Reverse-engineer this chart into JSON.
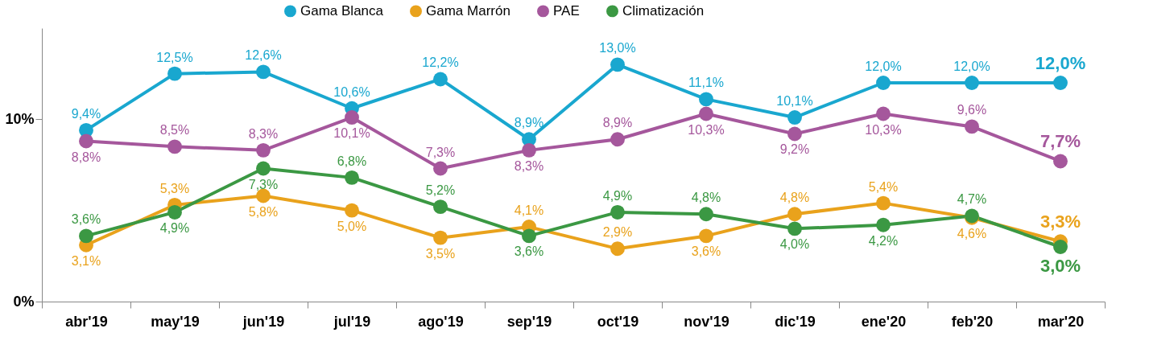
{
  "chart_data": {
    "type": "line",
    "categories": [
      "abr'19",
      "may'19",
      "jun'19",
      "jul'19",
      "ago'19",
      "sep'19",
      "oct'19",
      "nov'19",
      "dic'19",
      "ene'20",
      "feb'20",
      "mar'20"
    ],
    "series": [
      {
        "name": "Gama Blanca",
        "color": "#19a7cf",
        "values": [
          9.4,
          12.5,
          12.6,
          10.6,
          12.2,
          8.9,
          13.0,
          11.1,
          10.1,
          12.0,
          12.0,
          12.0
        ],
        "value_labels": [
          "9,4%",
          "12,5%",
          "12,6%",
          "10,6%",
          "12,2%",
          "8,9%",
          "13,0%",
          "11,1%",
          "10,1%",
          "12,0%",
          "12,0%",
          "12,0%"
        ]
      },
      {
        "name": "Gama Marrón",
        "color": "#e9a21c",
        "values": [
          3.1,
          5.3,
          5.8,
          5.0,
          3.5,
          4.1,
          2.9,
          3.6,
          4.8,
          5.4,
          4.6,
          3.3
        ],
        "value_labels": [
          "3,1%",
          "5,3%",
          "5,8%",
          "5,0%",
          "3,5%",
          "4,1%",
          "2,9%",
          "3,6%",
          "4,8%",
          "5,4%",
          "4,6%",
          "3,3%"
        ]
      },
      {
        "name": "PAE",
        "color": "#a5579c",
        "values": [
          8.8,
          8.5,
          8.3,
          10.1,
          7.3,
          8.3,
          8.9,
          10.3,
          9.2,
          10.3,
          9.6,
          7.7
        ],
        "value_labels": [
          "8,8%",
          "8,5%",
          "8,3%",
          "10,1%",
          "7,3%",
          "8,3%",
          "8,9%",
          "10,3%",
          "9,2%",
          "10,3%",
          "9,6%",
          "7,7%"
        ]
      },
      {
        "name": "Climatización",
        "color": "#3b9843",
        "values": [
          3.6,
          4.9,
          7.3,
          6.8,
          5.2,
          3.6,
          4.9,
          4.8,
          4.0,
          4.2,
          4.7,
          3.0
        ],
        "value_labels": [
          "3,6%",
          "4,9%",
          "7,3%",
          "6,8%",
          "5,2%",
          "3,6%",
          "4,9%",
          "4,8%",
          "4,0%",
          "4,2%",
          "4,7%",
          "3,0%"
        ]
      }
    ],
    "ylim": [
      0,
      15
    ],
    "yticks": [
      {
        "value": 0,
        "label": "0%"
      },
      {
        "value": 10,
        "label": "10%"
      }
    ],
    "grid": false,
    "legend": "top",
    "marker": "circle",
    "line_style": "solid"
  }
}
